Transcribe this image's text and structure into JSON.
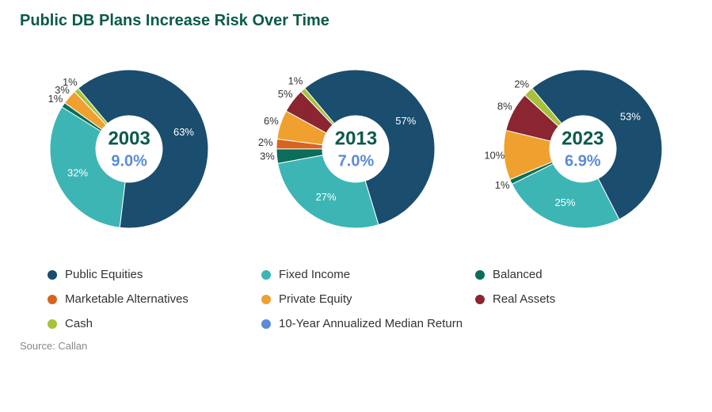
{
  "title": "Public DB Plans Increase Risk Over Time",
  "title_color": "#0a5a4a",
  "source": "Source: Callan",
  "return_color": "#5b8bd9",
  "year_color": "#0a5a4a",
  "donut_inner_ratio": 0.42,
  "categories": [
    {
      "key": "public_equities",
      "label": "Public Equities",
      "color": "#1a4d6e"
    },
    {
      "key": "fixed_income",
      "label": "Fixed Income",
      "color": "#3db5b5"
    },
    {
      "key": "balanced",
      "label": "Balanced",
      "color": "#0a6e5a"
    },
    {
      "key": "marketable_alt",
      "label": "Marketable Alternatives",
      "color": "#d9641f"
    },
    {
      "key": "private_equity",
      "label": "Private Equity",
      "color": "#f0a02e"
    },
    {
      "key": "real_assets",
      "label": "Real Assets",
      "color": "#8a2531"
    },
    {
      "key": "cash",
      "label": "Cash",
      "color": "#a6c23a"
    },
    {
      "key": "return",
      "label": "10-Year Annualized Median Return",
      "color": "#5b8bd9"
    }
  ],
  "charts": [
    {
      "year": "2003",
      "return": "9.0%",
      "slices": [
        {
          "cat": "public_equities",
          "value": 63,
          "label": "63%",
          "label_r": 0.72
        },
        {
          "cat": "fixed_income",
          "value": 32,
          "label": "32%",
          "label_r": 0.72
        },
        {
          "cat": "balanced",
          "value": 1,
          "label": "1%",
          "label_r": 1.12,
          "dark": true
        },
        {
          "cat": "private_equity",
          "value": 3,
          "label": "3%",
          "label_r": 1.12,
          "dark": true
        },
        {
          "cat": "cash",
          "value": 1,
          "label": "1%",
          "label_r": 1.12,
          "dark": true
        }
      ]
    },
    {
      "year": "2013",
      "return": "7.0%",
      "slices": [
        {
          "cat": "public_equities",
          "value": 57,
          "label": "57%",
          "label_r": 0.72
        },
        {
          "cat": "fixed_income",
          "value": 27,
          "label": "27%",
          "label_r": 0.72
        },
        {
          "cat": "balanced",
          "value": 3,
          "label": "3%",
          "label_r": 1.12,
          "dark": true
        },
        {
          "cat": "marketable_alt",
          "value": 2,
          "label": "2%",
          "label_r": 1.14,
          "dark": true
        },
        {
          "cat": "private_equity",
          "value": 6,
          "label": "6%",
          "label_r": 1.12,
          "dark": true
        },
        {
          "cat": "real_assets",
          "value": 5,
          "label": "5%",
          "label_r": 1.12,
          "dark": true
        },
        {
          "cat": "cash",
          "value": 1,
          "label": "1%",
          "label_r": 1.14,
          "dark": true
        }
      ]
    },
    {
      "year": "2023",
      "return": "6.9%",
      "slices": [
        {
          "cat": "public_equities",
          "value": 53,
          "label": "53%",
          "label_r": 0.72
        },
        {
          "cat": "fixed_income",
          "value": 25,
          "label": "25%",
          "label_r": 0.72
        },
        {
          "cat": "balanced",
          "value": 1,
          "label": "1%",
          "label_r": 1.12,
          "dark": true
        },
        {
          "cat": "private_equity",
          "value": 10,
          "label": "10%",
          "label_r": 1.12,
          "dark": true
        },
        {
          "cat": "real_assets",
          "value": 8,
          "label": "8%",
          "label_r": 1.12,
          "dark": true
        },
        {
          "cat": "cash",
          "value": 2,
          "label": "2%",
          "label_r": 1.12,
          "dark": true
        }
      ]
    }
  ]
}
